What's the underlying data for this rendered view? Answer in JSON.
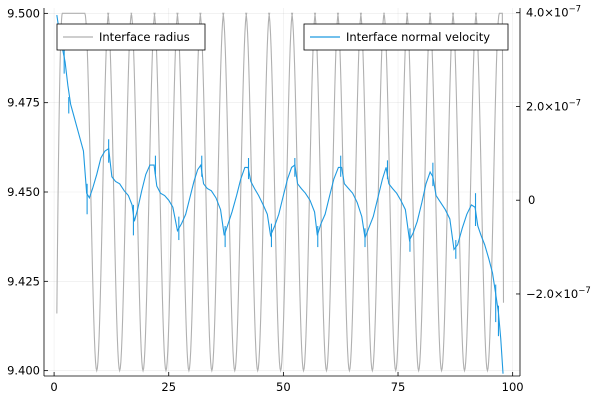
{
  "chart_data": {
    "type": "line",
    "title": "",
    "xlabel": "",
    "ylabel_left": "",
    "ylabel_right": "",
    "grid": true,
    "x_ticks": [
      0,
      25,
      50,
      75,
      100
    ],
    "x_tick_labels": [
      "0",
      "25",
      "50",
      "75",
      "100"
    ],
    "xlim": [
      -2.2,
      101.6
    ],
    "y_left_ticks": [
      9.4,
      9.425,
      9.45,
      9.475,
      9.5
    ],
    "y_left_tick_labels": [
      "9.400",
      "9.425",
      "9.450",
      "9.475",
      "9.500"
    ],
    "ylim_left": [
      9.3985,
      9.5015
    ],
    "y_right_ticks": [
      -2e-07,
      0,
      2e-07,
      4e-07
    ],
    "y_right_tick_labels": [
      {
        "mantissa": "−2.0×10",
        "exponent": "−7"
      },
      {
        "mantissa": "0",
        "exponent": ""
      },
      {
        "mantissa": "2.0×10",
        "exponent": "−7"
      },
      {
        "mantissa": "4.0×10",
        "exponent": "−7"
      }
    ],
    "ylim_right": [
      -3.75e-07,
      4.1e-07
    ],
    "series": [
      {
        "name": "Interface radius",
        "axis": "left",
        "color": "#b0b0b0",
        "legend_position": "top-left",
        "pattern": {
          "x_start": 0.6,
          "x_end": 98.0,
          "y_start": 9.416,
          "y_end": 9.419,
          "y_top": 9.5,
          "y_bottom": 9.4,
          "period": 5.0,
          "first_rise_x": 1.8,
          "min_x": [
            9.3,
            14.3,
            19.4,
            24.4,
            29.4,
            34.4,
            39.4,
            44.4,
            49.4,
            54.4,
            59.4,
            64.4,
            69.4,
            74.5,
            79.5,
            84.5,
            89.5,
            94.5
          ]
        }
      },
      {
        "name": "Interface normal velocity",
        "axis": "right",
        "color": "#1f9ae0",
        "legend_position": "top-right",
        "points": [
          [
            0.6,
            3.95e-07
          ],
          [
            1.2,
            3.55e-07
          ],
          [
            1.8,
            3.25e-07
          ],
          [
            2.4,
            2.95e-07
          ],
          [
            3.0,
            2.45e-07
          ],
          [
            3.6,
            2.05e-07
          ],
          [
            4.3,
            1.8e-07
          ],
          [
            5.0,
            1.55e-07
          ],
          [
            5.7,
            1.3e-07
          ],
          [
            6.4,
            1.05e-07
          ],
          [
            7.1,
            1.5e-08
          ],
          [
            7.7,
            5e-09
          ],
          [
            8.4,
            2.5e-08
          ],
          [
            9.3,
            5.5e-08
          ],
          [
            10.2,
            9e-08
          ],
          [
            11.1,
            1.05e-07
          ],
          [
            11.9,
            1.1e-07
          ],
          [
            12.6,
            5e-08
          ],
          [
            13.4,
            4e-08
          ],
          [
            14.3,
            3.5e-08
          ],
          [
            15.3,
            2e-08
          ],
          [
            16.2,
            1e-08
          ],
          [
            17.0,
            -1e-08
          ],
          [
            17.5,
            -4.5e-08
          ],
          [
            18.2,
            -2e-08
          ],
          [
            19.1,
            2e-08
          ],
          [
            20.0,
            5.5e-08
          ],
          [
            20.9,
            7.5e-08
          ],
          [
            21.8,
            7.5e-08
          ],
          [
            22.4,
            3e-08
          ],
          [
            23.2,
            1.5e-08
          ],
          [
            24.1,
            1e-08
          ],
          [
            25.0,
            0.0
          ],
          [
            25.9,
            -1.5e-08
          ],
          [
            26.9,
            -6.5e-08
          ],
          [
            27.8,
            -5e-08
          ],
          [
            28.7,
            -3e-08
          ],
          [
            29.6,
            5e-09
          ],
          [
            30.5,
            4e-08
          ],
          [
            31.3,
            6.5e-08
          ],
          [
            32.0,
            7.5e-08
          ],
          [
            32.6,
            3.5e-08
          ],
          [
            33.4,
            2.5e-08
          ],
          [
            34.3,
            2e-08
          ],
          [
            35.3,
            5e-09
          ],
          [
            36.3,
            -2e-08
          ],
          [
            37.1,
            -7.5e-08
          ],
          [
            37.8,
            -5.5e-08
          ],
          [
            38.8,
            -2.5e-08
          ],
          [
            39.8,
            1e-08
          ],
          [
            40.7,
            4.5e-08
          ],
          [
            41.6,
            7e-08
          ],
          [
            42.3,
            7e-08
          ],
          [
            42.9,
            4e-08
          ],
          [
            43.7,
            2.5e-08
          ],
          [
            44.6,
            1e-08
          ],
          [
            45.6,
            -1e-08
          ],
          [
            46.5,
            -3e-08
          ],
          [
            47.2,
            -7.5e-08
          ],
          [
            48.1,
            -5.5e-08
          ],
          [
            49.0,
            -3e-08
          ],
          [
            50.0,
            1e-08
          ],
          [
            50.9,
            4.5e-08
          ],
          [
            51.8,
            7e-08
          ],
          [
            52.5,
            7.5e-08
          ],
          [
            53.1,
            3.5e-08
          ],
          [
            53.9,
            2.5e-08
          ],
          [
            54.8,
            1.5e-08
          ],
          [
            55.8,
            0.0
          ],
          [
            56.8,
            -2.5e-08
          ],
          [
            57.4,
            -7.5e-08
          ],
          [
            58.2,
            -5e-08
          ],
          [
            59.1,
            -3e-08
          ],
          [
            60.1,
            1e-08
          ],
          [
            61.0,
            4.5e-08
          ],
          [
            62.0,
            7e-08
          ],
          [
            62.7,
            7e-08
          ],
          [
            63.3,
            3.5e-08
          ],
          [
            64.2,
            2.5e-08
          ],
          [
            65.1,
            1.5e-08
          ],
          [
            66.1,
            -5e-09
          ],
          [
            67.1,
            -3.5e-08
          ],
          [
            67.8,
            -8e-08
          ],
          [
            68.6,
            -6e-08
          ],
          [
            69.6,
            -3.5e-08
          ],
          [
            70.6,
            5e-09
          ],
          [
            71.6,
            4.5e-08
          ],
          [
            72.4,
            7e-08
          ],
          [
            73.0,
            3.5e-08
          ],
          [
            73.8,
            2.5e-08
          ],
          [
            74.7,
            1.5e-08
          ],
          [
            75.6,
            0.0
          ],
          [
            76.6,
            -2e-08
          ],
          [
            77.5,
            -8.5e-08
          ],
          [
            78.3,
            -7e-08
          ],
          [
            79.2,
            -4.5e-08
          ],
          [
            80.2,
            -5e-09
          ],
          [
            81.1,
            3.5e-08
          ],
          [
            82.0,
            6e-08
          ],
          [
            82.6,
            5e-08
          ],
          [
            83.3,
            1e-08
          ],
          [
            84.3,
            -5e-09
          ],
          [
            85.3,
            -2e-08
          ],
          [
            86.3,
            -4e-08
          ],
          [
            87.2,
            -1.05e-07
          ],
          [
            88.0,
            -9.5e-08
          ],
          [
            89.0,
            -6e-08
          ],
          [
            90.0,
            -3e-08
          ],
          [
            91.0,
            -1e-08
          ],
          [
            91.8,
            -1.5e-08
          ],
          [
            92.4,
            -5.5e-08
          ],
          [
            93.1,
            -7.5e-08
          ],
          [
            93.9,
            -9.5e-08
          ],
          [
            94.8,
            -1.25e-07
          ],
          [
            95.6,
            -1.55e-07
          ],
          [
            96.3,
            -2e-07
          ],
          [
            96.9,
            -2.4e-07
          ],
          [
            97.4,
            -2.95e-07
          ],
          [
            97.9,
            -3.7e-07
          ]
        ],
        "spikes": [
          [
            2.2,
            3.6e-07,
            2.7e-07
          ],
          [
            3.2,
            2.2e-07,
            1.85e-07
          ],
          [
            7.2,
            3.5e-08,
            -3e-08
          ],
          [
            11.9,
            1.3e-07,
            8e-08
          ],
          [
            17.3,
            -1e-08,
            -7.5e-08
          ],
          [
            22.1,
            9.5e-08,
            5.5e-08
          ],
          [
            27.2,
            -3.5e-08,
            -8.5e-08
          ],
          [
            32.2,
            9.5e-08,
            5e-08
          ],
          [
            37.3,
            -5.5e-08,
            -1e-07
          ],
          [
            42.4,
            9e-08,
            4.5e-08
          ],
          [
            47.4,
            -5e-08,
            -1e-07
          ],
          [
            52.5,
            9e-08,
            5e-08
          ],
          [
            57.5,
            -5.5e-08,
            -1e-07
          ],
          [
            62.5,
            9.5e-08,
            5e-08
          ],
          [
            67.8,
            -6e-08,
            -1e-07
          ],
          [
            72.7,
            8.5e-08,
            4.5e-08
          ],
          [
            77.6,
            -6e-08,
            -1.1e-07
          ],
          [
            82.6,
            8e-08,
            3e-08
          ],
          [
            87.6,
            -8.5e-08,
            -1.25e-07
          ],
          [
            91.9,
            1.5e-08,
            -5.5e-08
          ],
          [
            96.3,
            -1.8e-07,
            -2.6e-07
          ],
          [
            96.9,
            -2.25e-07,
            -2.9e-07
          ]
        ]
      }
    ],
    "legend": [
      {
        "label": "Interface radius",
        "position": "top-left"
      },
      {
        "label": "Interface normal velocity",
        "position": "top-right"
      }
    ]
  }
}
